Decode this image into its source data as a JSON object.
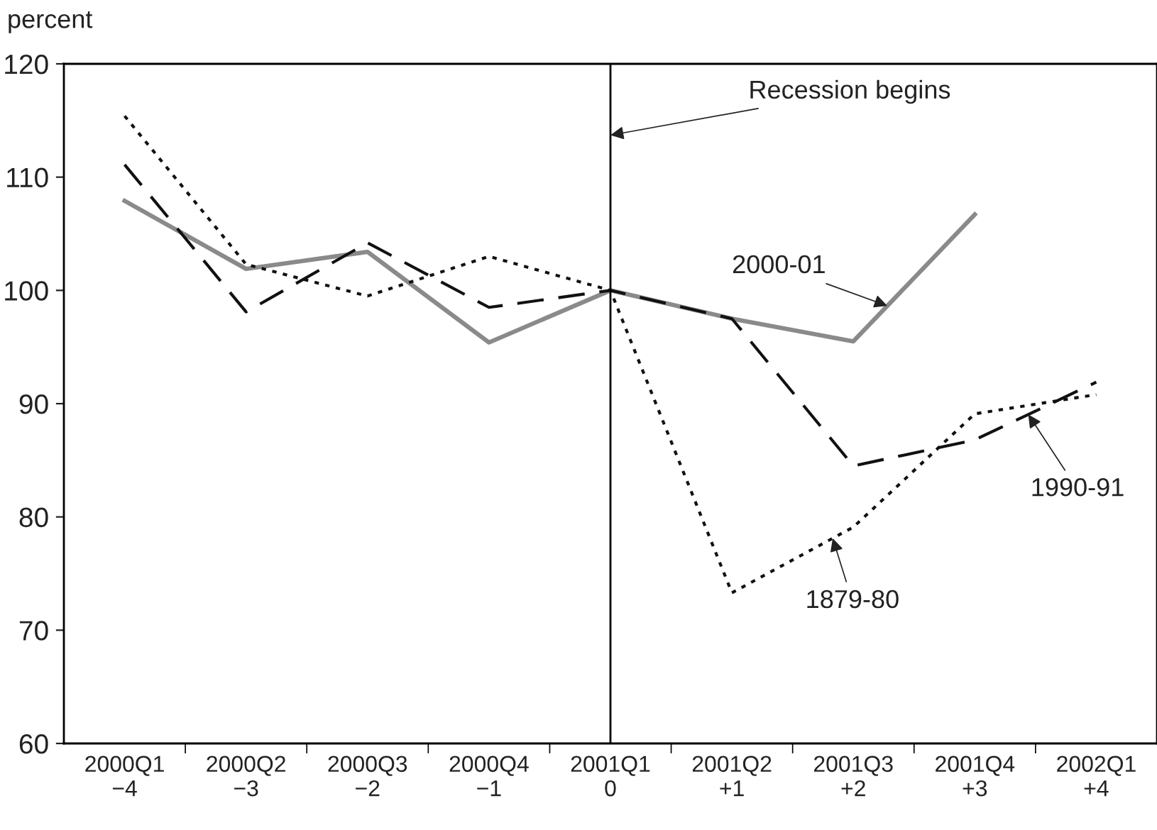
{
  "chart_data": {
    "type": "line",
    "ylabel": "percent",
    "categories": [
      "2000Q1\n−4",
      "2000Q2\n−3",
      "2000Q3\n−2",
      "2000Q4\n−1",
      "2001Q1\n0",
      "2001Q2\n+1",
      "2001Q3\n+2",
      "2001Q4\n+3",
      "2002Q1\n+4"
    ],
    "series": [
      {
        "name": "2000-01",
        "color": "#8a8a8a",
        "line_style": "solid",
        "values": [
          107.9,
          101.9,
          103.4,
          95.4,
          100,
          97.5,
          95.5,
          106.7,
          null
        ]
      },
      {
        "name": "1990-91",
        "color": "#111111",
        "line_style": "dashed",
        "values": [
          111.1,
          98.1,
          104.2,
          98.5,
          100,
          97.5,
          84.5,
          86.8,
          91.9
        ]
      },
      {
        "name": "1879-80",
        "color": "#111111",
        "line_style": "dotted",
        "values": [
          115.4,
          102.3,
          99.5,
          103.0,
          100,
          73.3,
          79.1,
          89.1,
          90.8
        ]
      }
    ],
    "ylim": [
      60,
      120
    ],
    "yticks": [
      60,
      70,
      80,
      90,
      100,
      110,
      120
    ],
    "ref_lines": [
      {
        "axis": "x",
        "value": "2001Q1\n0",
        "label": "Recession begins",
        "color": "#000000",
        "line_style": "solid"
      }
    ],
    "grid": false,
    "legend": false,
    "marker": "none"
  }
}
